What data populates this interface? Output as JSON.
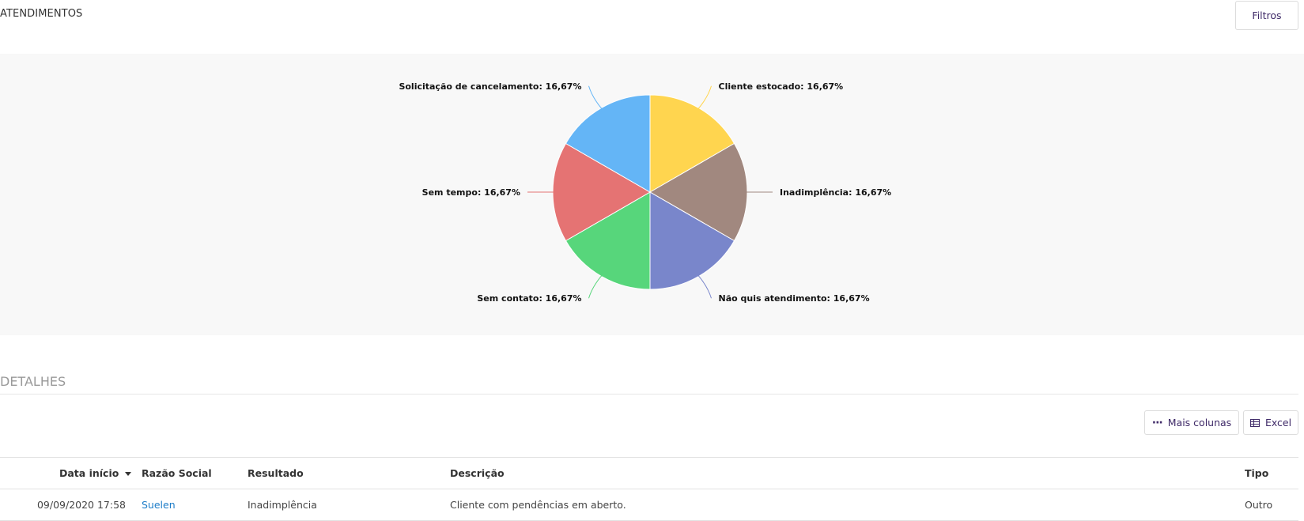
{
  "header": {
    "title": "ATENDIMENTOS",
    "filters_label": "Filtros"
  },
  "chart_data": {
    "type": "pie",
    "categories": [
      "Cliente estocado",
      "Inadimplência",
      "Não quis atendimento",
      "Sem contato",
      "Sem tempo",
      "Solicitação de cancelamento"
    ],
    "values": [
      16.67,
      16.67,
      16.67,
      16.67,
      16.67,
      16.67
    ],
    "colors": [
      "#ffd54f",
      "#a1887f",
      "#7986cb",
      "#57d67b",
      "#e57373",
      "#64b5f6"
    ],
    "labels": [
      "Cliente estocado: 16,67%",
      "Inadimplência: 16,67%",
      "Não quis atendimento: 16,67%",
      "Sem contato: 16,67%",
      "Sem tempo: 16,67%",
      "Solicitação de cancelamento: 16,67%"
    ]
  },
  "details": {
    "title": "DETALHES",
    "more_columns_label": "Mais colunas",
    "more_columns_icon": "dots-icon",
    "excel_label": "Excel",
    "excel_icon": "table-icon"
  },
  "table": {
    "columns": [
      "Data início",
      "Razão Social",
      "Resultado",
      "Descrição",
      "Tipo"
    ],
    "sort_icon": "sort-desc-icon",
    "rows": [
      {
        "date": "09/09/2020 17:58",
        "company": "Suelen",
        "result": "Inadimplência",
        "description": "Cliente com pendências em aberto.",
        "type": "Outro"
      }
    ]
  }
}
